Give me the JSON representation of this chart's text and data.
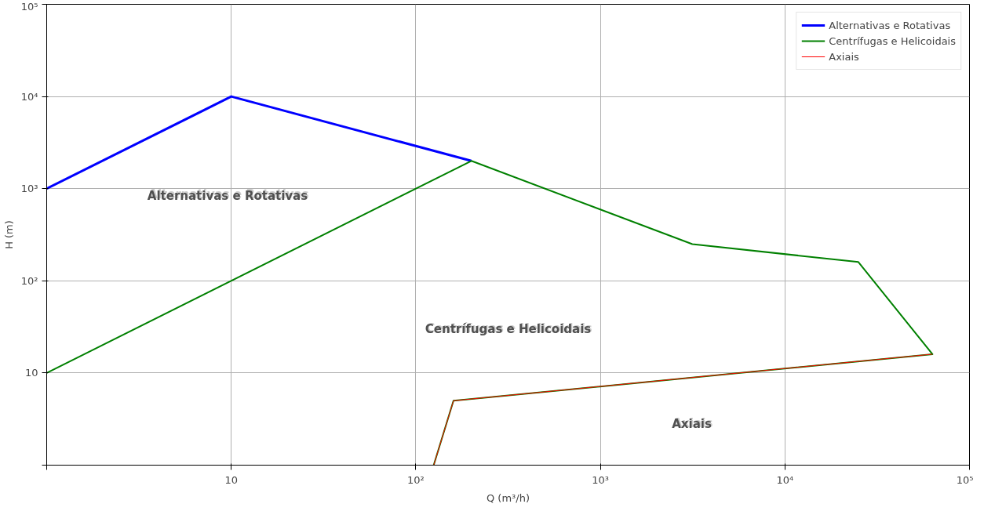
{
  "chart_data": {
    "type": "line",
    "xlabel": "Q (m³/h)",
    "ylabel": "H (m)",
    "log": "xy",
    "grid": true,
    "legend": "top right",
    "xlim": [
      1,
      100000
    ],
    "ylim": [
      1,
      100000
    ],
    "xticks": [
      {
        "value": 1,
        "label": null
      },
      10,
      {
        "value": 100,
        "label": "10²"
      },
      {
        "value": 1000,
        "label": "10³"
      },
      {
        "value": 10000,
        "label": "10⁴"
      },
      {
        "value": 100000,
        "label": "10⁵"
      }
    ],
    "yticks": [
      {
        "value": 1,
        "label": null
      },
      10,
      {
        "value": 100,
        "label": "10²"
      },
      {
        "value": 1000,
        "label": "10³"
      },
      {
        "value": 10000,
        "label": "10⁴"
      },
      {
        "value": 100000,
        "label": "10⁵"
      }
    ],
    "series": [
      {
        "name": "Alternativas e Rotativas",
        "color": "#0000ff",
        "x": [
          1,
          10,
          200
        ],
        "values": [
          1000,
          10000,
          2000
        ]
      },
      {
        "name": "Centrífugas e Helicoidais",
        "color": "#008000",
        "x": [
          1,
          200,
          3150,
          25000,
          63000,
          160,
          125
        ],
        "values": [
          10,
          2000,
          250,
          160,
          16,
          5,
          1
        ]
      },
      {
        "name": "Axiais",
        "color": "#ff0000",
        "x": [
          63000,
          160,
          125
        ],
        "values": [
          16,
          5,
          1
        ]
      }
    ],
    "annotations": [
      "Alternativas e Rotativas",
      "Centrífugas e Helicoidais",
      "Axiais"
    ]
  }
}
